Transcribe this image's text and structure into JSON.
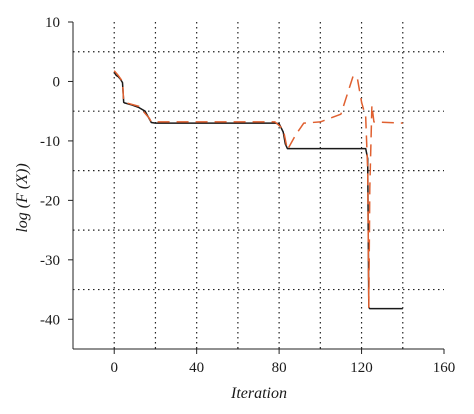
{
  "chart_data": {
    "type": "line",
    "title": "",
    "xlabel": "Iteration",
    "ylabel": "log (F (X))",
    "xlim": [
      -20,
      160
    ],
    "ylim": [
      -45,
      10
    ],
    "x_ticks": [
      0,
      40,
      80,
      120,
      160
    ],
    "y_ticks": [
      10,
      0,
      -10,
      -20,
      -30,
      -40
    ],
    "x_gridlines": [
      0,
      20,
      40,
      60,
      80,
      100,
      120,
      140
    ],
    "y_gridlines": [
      5,
      -5,
      -15,
      -25,
      -35
    ],
    "grid": true,
    "grid_style": "dotted",
    "legend": "none",
    "series": [
      {
        "color": "#1a1a1a",
        "dash": "solid",
        "x": [
          0,
          1,
          2,
          3,
          4,
          4.6,
          5,
          8,
          12,
          15,
          17,
          18,
          20,
          40,
          60,
          78,
          80,
          82,
          83,
          84,
          90,
          110,
          122,
          123,
          123.5,
          124,
          140
        ],
        "y": [
          1.5,
          1.0,
          0.8,
          0.4,
          -0.2,
          -3.5,
          -3.6,
          -3.9,
          -4.4,
          -5.0,
          -6.3,
          -6.9,
          -7.0,
          -7.0,
          -7.0,
          -7.0,
          -7.1,
          -8.5,
          -10.5,
          -11.3,
          -11.3,
          -11.3,
          -11.3,
          -13.0,
          -38.0,
          -38.2,
          -38.2
        ]
      },
      {
        "color": "#e06030",
        "dash": "dashed",
        "x": [
          0,
          2,
          4,
          4.6,
          5,
          12,
          17,
          18,
          40,
          78,
          82,
          84,
          88,
          92,
          100,
          110,
          116,
          118,
          120,
          122,
          123,
          123.5,
          124,
          125,
          126,
          140
        ],
        "y": [
          1.8,
          1.0,
          0.0,
          -3.4,
          -3.5,
          -4.2,
          -6.2,
          -6.8,
          -6.8,
          -6.8,
          -8.0,
          -11.5,
          -9.0,
          -7.0,
          -6.8,
          -5.5,
          1.0,
          0.5,
          -3.5,
          -6.0,
          -15.0,
          -38.0,
          -18.0,
          -4.0,
          -6.8,
          -7.0
        ]
      }
    ]
  }
}
